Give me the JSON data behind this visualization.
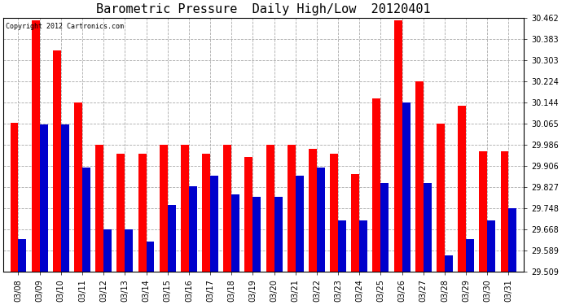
{
  "title": "Barometric Pressure  Daily High/Low  20120401",
  "copyright": "Copyright 2012 Cartronics.com",
  "categories": [
    "03/08",
    "03/09",
    "03/10",
    "03/11",
    "03/12",
    "03/13",
    "03/14",
    "03/15",
    "03/16",
    "03/17",
    "03/18",
    "03/19",
    "03/20",
    "03/21",
    "03/22",
    "03/23",
    "03/24",
    "03/25",
    "03/26",
    "03/27",
    "03/28",
    "03/29",
    "03/30",
    "03/31"
  ],
  "highs": [
    30.068,
    30.452,
    30.34,
    30.144,
    29.986,
    29.95,
    29.95,
    29.986,
    29.986,
    29.95,
    29.986,
    29.94,
    29.986,
    29.986,
    29.968,
    29.95,
    29.874,
    30.16,
    30.452,
    30.224,
    30.065,
    30.13,
    29.96,
    29.96
  ],
  "lows": [
    29.63,
    30.06,
    30.06,
    29.9,
    29.668,
    29.668,
    29.62,
    29.76,
    29.83,
    29.87,
    29.8,
    29.79,
    29.79,
    29.87,
    29.9,
    29.7,
    29.7,
    29.84,
    30.144,
    29.84,
    29.57,
    29.63,
    29.7,
    29.748
  ],
  "high_color": "#ff0000",
  "low_color": "#0000cc",
  "ylim_min": 29.509,
  "ylim_max": 30.462,
  "yticks": [
    29.509,
    29.589,
    29.668,
    29.748,
    29.827,
    29.906,
    29.986,
    30.065,
    30.144,
    30.224,
    30.303,
    30.383,
    30.462
  ],
  "background_color": "#ffffff",
  "plot_bg_color": "#ffffff",
  "grid_color": "#aaaaaa",
  "title_fontsize": 11,
  "tick_fontsize": 7,
  "bar_width": 0.38
}
